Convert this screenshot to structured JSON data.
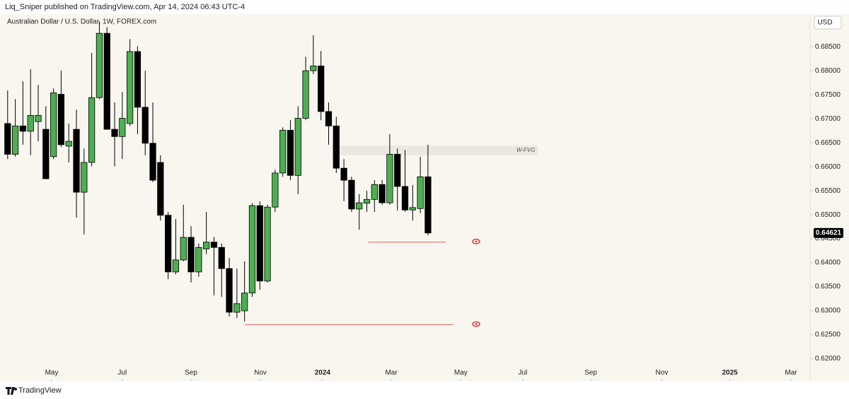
{
  "header": {
    "text": "Liq_Sniper published on TradingView.com, Apr 14, 2024 06:43 UTC-4"
  },
  "currency_button": "USD",
  "footer": {
    "brand": "TradingView"
  },
  "chart_data": {
    "type": "candlestick",
    "title": "Australian Dollar / U.S. Dollar, 1W, FOREX.com",
    "up_color": "#4caf50",
    "down_color": "#000000",
    "outline_color": "#000000",
    "open": [
      0.669,
      0.6626,
      0.6685,
      0.6674,
      0.6694,
      0.6678,
      0.6621,
      0.6751,
      0.6643,
      0.6678,
      0.6547,
      0.6609,
      0.6744,
      0.6878,
      0.6678,
      0.6663,
      0.669,
      0.684,
      0.6724,
      0.6649,
      0.6609,
      0.6499,
      0.6381,
      0.6406,
      0.6453,
      0.6381,
      0.6429,
      0.6443,
      0.6432,
      0.6388,
      0.6297,
      0.63,
      0.6337,
      0.6519,
      0.6362,
      0.6516,
      0.6587,
      0.6676,
      0.6582,
      0.6701,
      0.68,
      0.681,
      0.6715,
      0.6685,
      0.6597,
      0.6572,
      0.6512,
      0.6524,
      0.6532,
      0.6563,
      0.6525,
      0.6626,
      0.6559,
      0.651,
      0.6513,
      0.6579
    ],
    "high": [
      0.6759,
      0.6741,
      0.6778,
      0.6803,
      0.6771,
      0.6726,
      0.6763,
      0.68,
      0.669,
      0.6719,
      0.6638,
      0.6837,
      0.6903,
      0.6891,
      0.6734,
      0.6756,
      0.6866,
      0.6851,
      0.68,
      0.6734,
      0.6624,
      0.6506,
      0.6491,
      0.6521,
      0.6476,
      0.644,
      0.6506,
      0.6454,
      0.644,
      0.641,
      0.6388,
      0.6403,
      0.6524,
      0.6528,
      0.6521,
      0.6594,
      0.6682,
      0.6697,
      0.6726,
      0.6829,
      0.6874,
      0.6841,
      0.6734,
      0.6704,
      0.6616,
      0.6579,
      0.6543,
      0.655,
      0.6572,
      0.6572,
      0.6668,
      0.6638,
      0.6635,
      0.6562,
      0.6621,
      0.6646
    ],
    "low": [
      0.6616,
      0.6621,
      0.6646,
      0.6624,
      0.6653,
      0.6575,
      0.6616,
      0.6641,
      0.6609,
      0.6494,
      0.6459,
      0.6601,
      0.6741,
      0.6678,
      0.6601,
      0.6616,
      0.6685,
      0.6668,
      0.6624,
      0.6568,
      0.6488,
      0.6366,
      0.6376,
      0.6403,
      0.6359,
      0.6371,
      0.6418,
      0.6332,
      0.6329,
      0.6288,
      0.6285,
      0.6278,
      0.6329,
      0.6344,
      0.6359,
      0.6506,
      0.6579,
      0.6572,
      0.6543,
      0.6697,
      0.6793,
      0.6697,
      0.6646,
      0.6587,
      0.6528,
      0.6506,
      0.6469,
      0.6506,
      0.6506,
      0.6521,
      0.6521,
      0.6509,
      0.6506,
      0.6488,
      0.6503,
      0.6457
    ],
    "close": [
      0.6626,
      0.6685,
      0.6674,
      0.6707,
      0.6707,
      0.6575,
      0.6754,
      0.6646,
      0.6653,
      0.6547,
      0.6609,
      0.6744,
      0.6878,
      0.6678,
      0.6663,
      0.6701,
      0.684,
      0.6724,
      0.6649,
      0.6572,
      0.6499,
      0.6381,
      0.6406,
      0.6453,
      0.6381,
      0.6432,
      0.6443,
      0.6432,
      0.6388,
      0.6297,
      0.6315,
      0.6337,
      0.6519,
      0.6362,
      0.6516,
      0.6587,
      0.6676,
      0.6582,
      0.6701,
      0.68,
      0.681,
      0.6715,
      0.6685,
      0.6597,
      0.6572,
      0.6512,
      0.6525,
      0.6532,
      0.6563,
      0.6525,
      0.6626,
      0.6559,
      0.651,
      0.6515,
      0.6579,
      0.64621
    ],
    "xlim": [
      -1,
      105
    ],
    "xticks": [
      {
        "value": 5.76,
        "label": "May"
      },
      {
        "value": 15.0,
        "label": "Jul"
      },
      {
        "value": 24.0,
        "label": "Sep"
      },
      {
        "value": 33.07,
        "label": "Nov"
      },
      {
        "value": 41.2,
        "label": "2024"
      },
      {
        "value": 50.2,
        "label": "Mar"
      },
      {
        "value": 59.3,
        "label": "May"
      },
      {
        "value": 67.4,
        "label": "Jul"
      },
      {
        "value": 76.3,
        "label": "Sep"
      },
      {
        "value": 85.6,
        "label": "Nov"
      },
      {
        "value": 94.5,
        "label": "2025"
      },
      {
        "value": 102.5,
        "label": "Mar"
      }
    ],
    "ylim": [
      0.6153,
      0.6915
    ],
    "yticks": [
      {
        "value": 0.62,
        "label": "0.62000"
      },
      {
        "value": 0.625,
        "label": "0.62500"
      },
      {
        "value": 0.63,
        "label": "0.63000"
      },
      {
        "value": 0.635,
        "label": "0.63500"
      },
      {
        "value": 0.64,
        "label": "0.64000"
      },
      {
        "value": 0.645,
        "label": "0.64500"
      },
      {
        "value": 0.65,
        "label": "0.65000"
      },
      {
        "value": 0.655,
        "label": "0.65500"
      },
      {
        "value": 0.66,
        "label": "0.66000"
      },
      {
        "value": 0.665,
        "label": "0.66500"
      },
      {
        "value": 0.67,
        "label": "0.67000"
      },
      {
        "value": 0.675,
        "label": "0.67500"
      },
      {
        "value": 0.68,
        "label": "0.68000"
      },
      {
        "value": 0.685,
        "label": "0.68500"
      }
    ],
    "grid": false,
    "zones": [
      {
        "label": "W-FVG",
        "ylim": [
          0.6624,
          0.6644
        ],
        "xlim": [
          42.5,
          69.4
        ],
        "color": "#ebe8e2"
      }
    ],
    "levels": [
      {
        "value": 0.6443,
        "xlim": [
          47.2,
          57.3
        ],
        "color": "#e05a5a"
      },
      {
        "value": 0.6271,
        "xlim": [
          31.0,
          58.3
        ],
        "color": "#e05a5a"
      }
    ]
  }
}
